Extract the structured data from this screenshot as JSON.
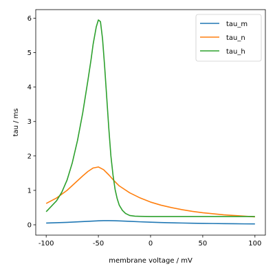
{
  "chart_data": {
    "type": "line",
    "title": "",
    "xlabel": "membrane voltage / mV",
    "ylabel": "tau / ms",
    "xlim": [
      -110,
      110
    ],
    "ylim": [
      -0.3,
      6.25
    ],
    "xticks": [
      -100,
      -50,
      0,
      50,
      100
    ],
    "yticks": [
      0,
      1,
      2,
      3,
      4,
      5,
      6
    ],
    "grid": false,
    "legend_position": "top-right",
    "series": [
      {
        "name": "tau_m",
        "color": "#1f77b4",
        "x": [
          -100,
          -90,
          -80,
          -70,
          -60,
          -50,
          -45,
          -40,
          -35,
          -30,
          -20,
          -10,
          0,
          10,
          20,
          30,
          40,
          50,
          60,
          70,
          80,
          90,
          100
        ],
        "y": [
          0.05,
          0.06,
          0.07,
          0.085,
          0.1,
          0.115,
          0.12,
          0.12,
          0.118,
          0.113,
          0.1,
          0.087,
          0.075,
          0.066,
          0.058,
          0.052,
          0.046,
          0.041,
          0.037,
          0.033,
          0.03,
          0.027,
          0.025
        ]
      },
      {
        "name": "tau_n",
        "color": "#ff7f0e",
        "x": [
          -100,
          -90,
          -80,
          -70,
          -65,
          -60,
          -55,
          -50,
          -45,
          -40,
          -35,
          -30,
          -20,
          -10,
          0,
          10,
          20,
          30,
          40,
          50,
          60,
          70,
          80,
          90,
          100
        ],
        "y": [
          0.62,
          0.78,
          1.0,
          1.28,
          1.42,
          1.55,
          1.65,
          1.68,
          1.6,
          1.45,
          1.28,
          1.13,
          0.93,
          0.78,
          0.66,
          0.57,
          0.5,
          0.44,
          0.39,
          0.35,
          0.32,
          0.29,
          0.27,
          0.25,
          0.23
        ]
      },
      {
        "name": "tau_h",
        "color": "#2ca02c",
        "x": [
          -100,
          -90,
          -85,
          -80,
          -75,
          -70,
          -65,
          -60,
          -57,
          -55,
          -52,
          -50,
          -48,
          -46,
          -44,
          -42,
          -40,
          -38,
          -36,
          -34,
          -32,
          -30,
          -27,
          -24,
          -20,
          -15,
          -10,
          0,
          20,
          50,
          100
        ],
        "y": [
          0.38,
          0.7,
          0.95,
          1.3,
          1.8,
          2.45,
          3.25,
          4.2,
          4.8,
          5.25,
          5.75,
          5.95,
          5.9,
          5.4,
          4.6,
          3.7,
          2.8,
          2.0,
          1.45,
          1.03,
          0.76,
          0.57,
          0.42,
          0.33,
          0.27,
          0.25,
          0.245,
          0.24,
          0.24,
          0.24,
          0.24
        ]
      }
    ]
  }
}
